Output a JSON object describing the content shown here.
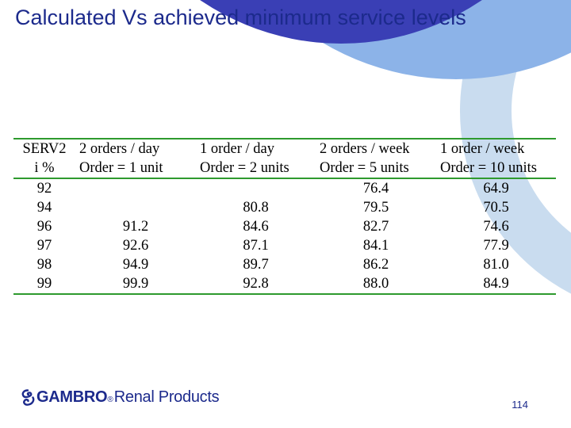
{
  "slide": {
    "title": "Calculated Vs achieved minimum service levels",
    "page_number": "114",
    "colors": {
      "title": "#1c2a8c",
      "rule": "#2e9a2e",
      "arc_dark": "#3a3fb5",
      "arc_mid": "#8cb3e8",
      "arc_light": "#c9dcef"
    }
  },
  "table": {
    "headers": [
      [
        "SERV2",
        "i %"
      ],
      [
        "2 orders / day",
        "Order = 1 unit"
      ],
      [
        "1 order / day",
        "Order = 2 units"
      ],
      [
        "2 orders / week",
        "Order = 5 units"
      ],
      [
        "1 order / week",
        "Order = 10 units"
      ]
    ],
    "rows": [
      [
        "92",
        "",
        "",
        "76.4",
        "64.9"
      ],
      [
        "94",
        "",
        "80.8",
        "79.5",
        "70.5"
      ],
      [
        "96",
        "91.2",
        "84.6",
        "82.7",
        "74.6"
      ],
      [
        "97",
        "92.6",
        "87.1",
        "84.1",
        "77.9"
      ],
      [
        "98",
        "94.9",
        "89.7",
        "86.2",
        "81.0"
      ],
      [
        "99",
        "99.9",
        "92.8",
        "88.0",
        "84.9"
      ]
    ]
  },
  "logo": {
    "brand": "GAMBRO",
    "registered": "®",
    "suffix": "Renal Products",
    "icon": "gambro-swirl-icon"
  }
}
